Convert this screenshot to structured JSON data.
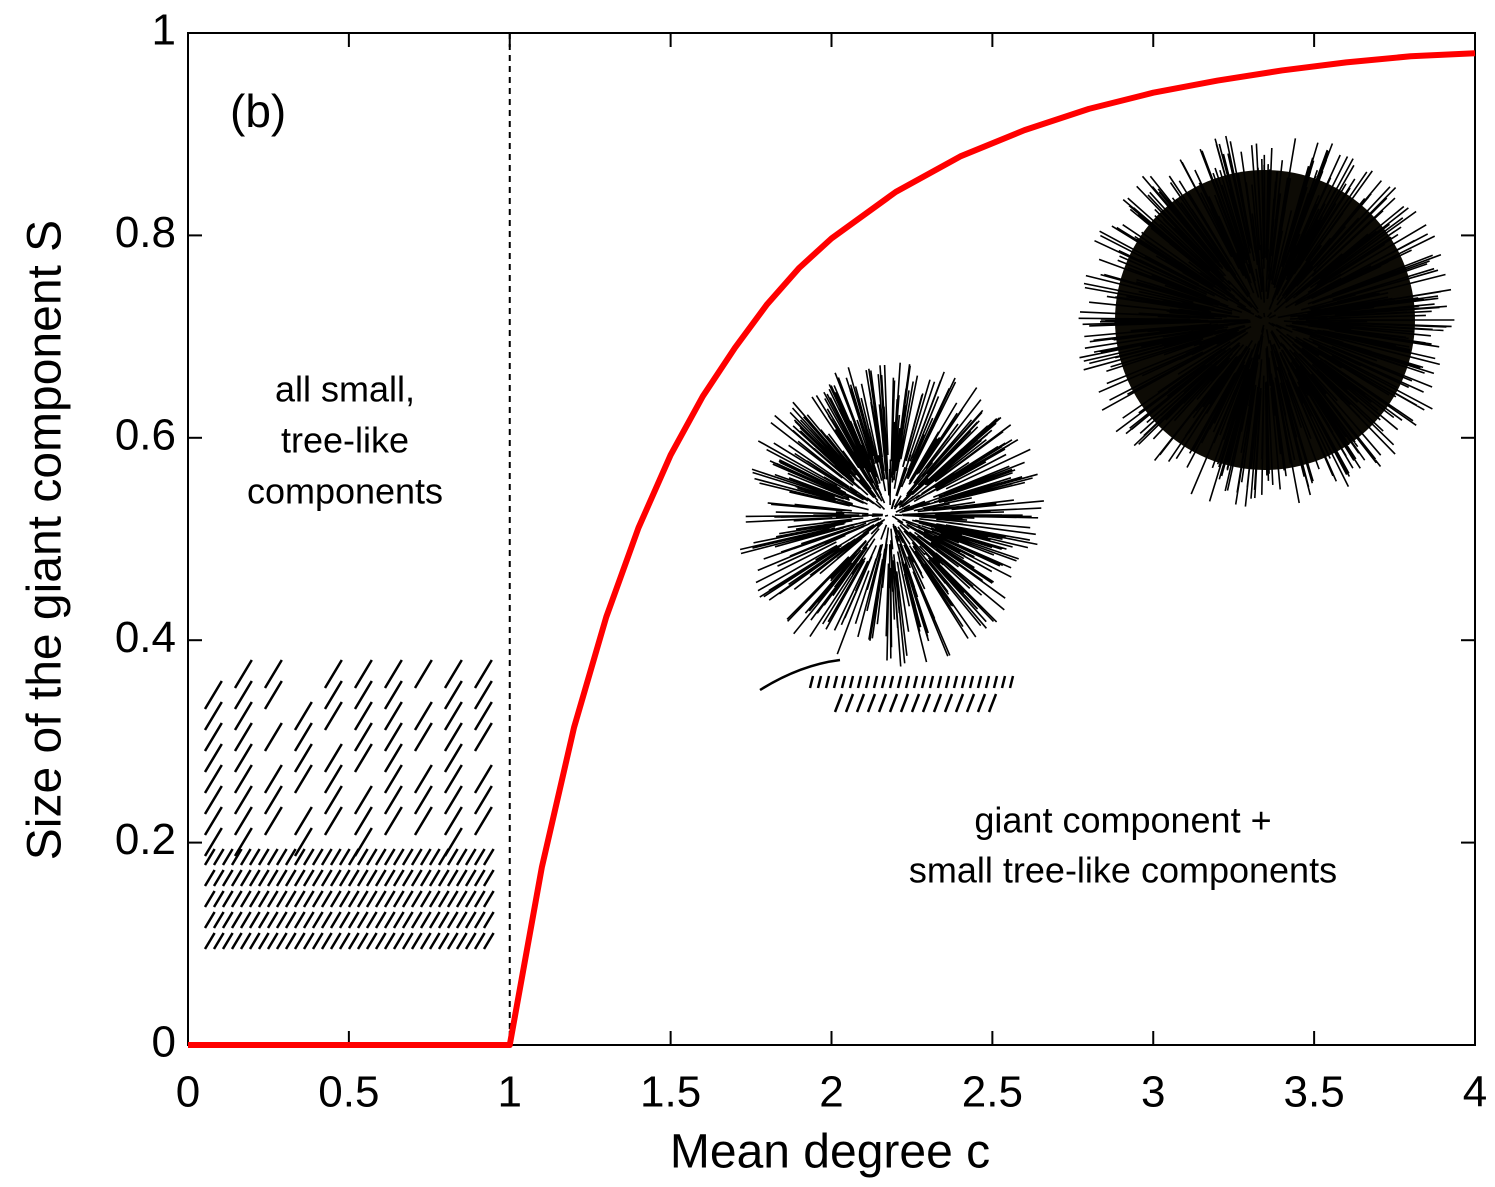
{
  "chart_data": {
    "type": "line",
    "xlabel": "Mean degree c",
    "ylabel": "Size of the giant component S",
    "x": [
      0,
      0.5,
      1,
      1.1,
      1.2,
      1.3,
      1.4,
      1.5,
      1.6,
      1.7,
      1.8,
      1.9,
      2.0,
      2.2,
      2.4,
      2.6,
      2.8,
      3.0,
      3.2,
      3.4,
      3.6,
      3.8,
      4.0
    ],
    "series": [
      {
        "color": "#ff0000",
        "values": [
          0,
          0,
          0,
          0.176,
          0.314,
          0.423,
          0.511,
          0.583,
          0.641,
          0.689,
          0.732,
          0.768,
          0.797,
          0.843,
          0.878,
          0.904,
          0.925,
          0.941,
          0.953,
          0.963,
          0.971,
          0.977,
          0.98
        ]
      }
    ],
    "xlim": [
      0,
      4
    ],
    "ylim": [
      0,
      1
    ],
    "xticks": [
      0,
      0.5,
      1,
      1.5,
      2,
      2.5,
      3,
      3.5,
      4
    ],
    "yticks": [
      0,
      0.2,
      0.4,
      0.6,
      0.8,
      1
    ],
    "vline": 1,
    "annotations": {
      "panel": "(b)",
      "left": [
        "all small,",
        "tree-like",
        "components"
      ],
      "right": [
        "giant component +",
        "small tree-like components"
      ]
    }
  }
}
